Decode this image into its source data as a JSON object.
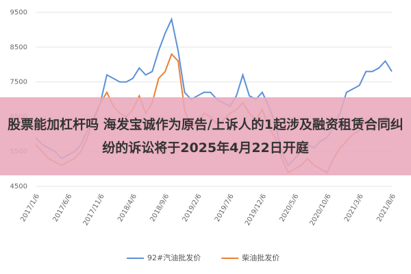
{
  "chart_data": {
    "type": "line",
    "categories": [
      "2017/1/6",
      null,
      null,
      null,
      null,
      "2017/6/6",
      null,
      null,
      null,
      null,
      "2017/11/6",
      null,
      null,
      null,
      null,
      "2018/4/6",
      null,
      null,
      null,
      null,
      "2018/9/6",
      null,
      null,
      null,
      null,
      "2019/2/6",
      null,
      null,
      null,
      null,
      "2019/7/6",
      null,
      null,
      null,
      null,
      "2019/12/6",
      null,
      null,
      null,
      null,
      "2020/5/6",
      null,
      null,
      null,
      null,
      "2020/10/6",
      null,
      null,
      null,
      null,
      "2021/3/6",
      null,
      null,
      null,
      null,
      "2021/8/6"
    ],
    "series": [
      {
        "name": "92#汽油批发价",
        "color": "#5b8fd6",
        "values": [
          5900,
          5700,
          5600,
          5500,
          5300,
          5400,
          5500,
          5700,
          6100,
          6400,
          6900,
          7700,
          7600,
          7500,
          7500,
          7600,
          7900,
          7700,
          7800,
          8400,
          8900,
          9300,
          8400,
          7200,
          7000,
          7100,
          7200,
          7200,
          7000,
          6900,
          6800,
          7100,
          7700,
          7100,
          7000,
          7200,
          6800,
          6300,
          5500,
          5100,
          5300,
          5500,
          5700,
          5600,
          5800,
          5900,
          6200,
          6600,
          7200,
          7300,
          7400,
          7800,
          7800,
          7900,
          8100,
          7800
        ]
      },
      {
        "name": "柴油批发价",
        "color": "#ed7d31",
        "values": [
          5700,
          5500,
          5300,
          5200,
          5100,
          5200,
          5300,
          5500,
          5900,
          6500,
          6900,
          7200,
          6800,
          6600,
          6500,
          6700,
          7100,
          6600,
          6900,
          7600,
          7800,
          8300,
          8100,
          6700,
          6200,
          6300,
          6600,
          6500,
          6300,
          6400,
          6600,
          6700,
          6900,
          6600,
          6400,
          6700,
          6200,
          5900,
          5300,
          4900,
          5000,
          5100,
          5300,
          5100,
          5000,
          4900,
          5300,
          5600,
          5800,
          6000,
          6100,
          6400,
          6100,
          6300,
          6500,
          6200
        ]
      }
    ],
    "ylim": [
      4500,
      9500
    ],
    "yticks": [
      4500,
      5500,
      6500,
      7500,
      8500,
      9500
    ],
    "grid": true,
    "legend": "bottom"
  },
  "banner": {
    "text": "股票能加杠杆吗 海发宝诚作为原告/上诉人的1起涉及融资租赁合同纠纷的诉讼将于2025年4月22日开庭"
  }
}
